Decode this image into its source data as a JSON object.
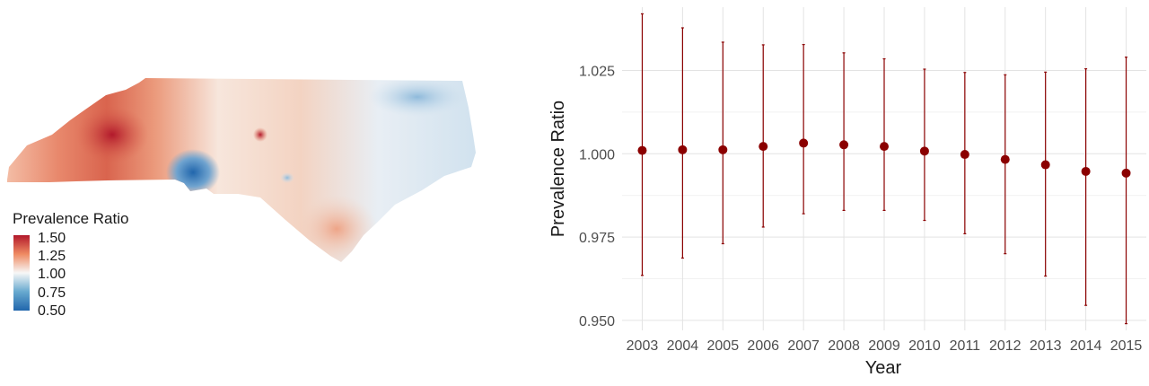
{
  "map": {
    "legend_title": "Prevalence Ratio",
    "legend_ticks": [
      "1.50",
      "1.25",
      "1.00",
      "0.75",
      "0.50"
    ],
    "color_scale": {
      "high": "#b2182b",
      "mid": "#f7f7f7",
      "low": "#2166ac"
    }
  },
  "chart_data": {
    "type": "scatter",
    "xlabel": "Year",
    "ylabel": "Prevalence Ratio",
    "categories": [
      "2003",
      "2004",
      "2005",
      "2006",
      "2007",
      "2008",
      "2009",
      "2010",
      "2011",
      "2012",
      "2013",
      "2014",
      "2015"
    ],
    "values": [
      1.001,
      1.0012,
      1.0012,
      1.0022,
      1.0032,
      1.0027,
      1.0022,
      1.0008,
      0.9998,
      0.9983,
      0.9967,
      0.9947,
      0.9942
    ],
    "lower": [
      0.9635,
      0.9687,
      0.973,
      0.978,
      0.982,
      0.983,
      0.983,
      0.98,
      0.976,
      0.97,
      0.9633,
      0.9545,
      0.949
    ],
    "upper": [
      1.042,
      1.0378,
      1.0335,
      1.0327,
      1.0328,
      1.0303,
      1.0285,
      1.0254,
      1.0244,
      1.0237,
      1.0245,
      1.0255,
      1.029
    ],
    "y_ticks": [
      "0.950",
      "0.975",
      "1.000",
      "1.025"
    ],
    "ylim": [
      0.947,
      1.044
    ],
    "grid": true,
    "color": "#8b0000"
  }
}
